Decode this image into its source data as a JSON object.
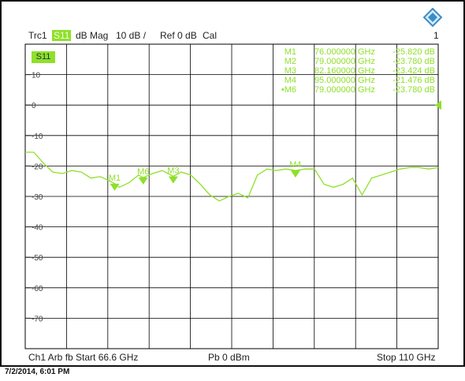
{
  "header": {
    "trace": "Trc1",
    "param": "S11",
    "format": "dB Mag",
    "scale": "10 dB /",
    "ref": "Ref 0 dB",
    "cal": "Cal",
    "channel_index": "1"
  },
  "trace_badge": "S11",
  "markers": [
    {
      "label": "M1",
      "freq": "76.000000 GHz",
      "value": "-25.820 dB"
    },
    {
      "label": "M2",
      "freq": "79.000000 GHz",
      "value": "-23.780 dB"
    },
    {
      "label": "M3",
      "freq": "82.160000 GHz",
      "value": "-23.424 dB"
    },
    {
      "label": "M4",
      "freq": "95.000000 GHz",
      "value": "-21.476 dB"
    },
    {
      "label": "•M6",
      "freq": "79.000000 GHz",
      "value": "-23.780 dB"
    }
  ],
  "footer": {
    "left": "Ch1  Arb fb  Start  66.6 GHz",
    "mid": "Pb  0 dBm",
    "right": "Stop  110 GHz"
  },
  "timestamp": "7/2/2014, 6:01 PM",
  "colors": {
    "trace": "#8fe02a",
    "grid": "#000000"
  },
  "chart_data": {
    "type": "line",
    "title": "",
    "xlabel": "",
    "ylabel": "",
    "xlim": [
      66.6,
      110
    ],
    "ylim": [
      -80,
      20
    ],
    "y_ticks": [
      10,
      0,
      -10,
      -20,
      -30,
      -40,
      -50,
      -60,
      -70
    ],
    "grid": true,
    "series": [
      {
        "name": "S11",
        "x": [
          66.6,
          67.5,
          68.5,
          69.5,
          70.5,
          71.5,
          72.5,
          73.5,
          74.5,
          75.5,
          76,
          76.5,
          77.5,
          78.5,
          79,
          80,
          81,
          82.16,
          83,
          84,
          85,
          86,
          87,
          88,
          89,
          90,
          91,
          92,
          93,
          94,
          95,
          96,
          97,
          98,
          99,
          100,
          101,
          102,
          103,
          104,
          105,
          106,
          107,
          108,
          109,
          110
        ],
        "values": [
          -15.5,
          -15.5,
          -19,
          -22,
          -22.5,
          -21.5,
          -22,
          -24,
          -23.5,
          -25,
          -25.8,
          -27,
          -25.5,
          -23,
          -23.8,
          -22.5,
          -21.5,
          -23.4,
          -22,
          -23,
          -26,
          -29.5,
          -31.5,
          -30,
          -29,
          -30.5,
          -23,
          -21,
          -21.5,
          -21,
          -21.5,
          -21,
          -21,
          -26,
          -27,
          -26,
          -24,
          -29.5,
          -24,
          -23,
          -22,
          -21,
          -20.5,
          -20.5,
          -21,
          -20.5
        ]
      }
    ],
    "markers": [
      {
        "label": "M1",
        "x": 76,
        "y": -25.82
      },
      {
        "label": "M6",
        "x": 79,
        "y": -23.78
      },
      {
        "label": "M3",
        "x": 82.16,
        "y": -23.424
      },
      {
        "label": "M4",
        "x": 95,
        "y": -21.476
      }
    ],
    "ref_level": 0
  }
}
